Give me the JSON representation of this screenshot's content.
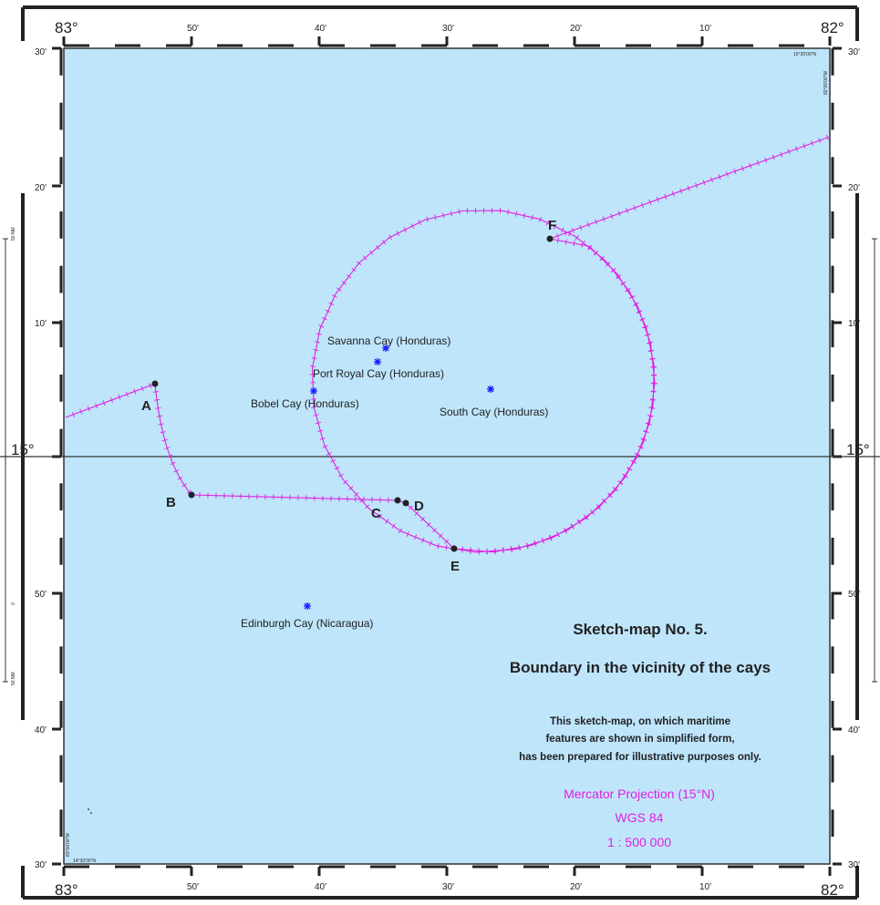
{
  "map": {
    "top_corner_left": "83°",
    "top_corner_right": "82°",
    "bottom_corner_left": "83°",
    "bottom_corner_right": "82°",
    "lon_ticks": [
      "50'",
      "40'",
      "30'",
      "20'",
      "10'"
    ],
    "lat_ticks_upper": [
      "30'",
      "20'",
      "10'"
    ],
    "lat_ticks_lower": [
      "50'",
      "40'",
      "30'"
    ],
    "lat_mid": "15°",
    "corner_tr_coord": "15°30'00\"N",
    "corner_tr_coord2": "82°00'00\"W",
    "corner_bl_coord": "14°30'00\"N",
    "corner_bl_coord2": "83°00'00\"W",
    "scale_left_top": "50 NM",
    "scale_left_mid": "0",
    "scale_left_bottom": "50 NM"
  },
  "points": [
    {
      "label": "A"
    },
    {
      "label": "B"
    },
    {
      "label": "C"
    },
    {
      "label": "D"
    },
    {
      "label": "E"
    },
    {
      "label": "F"
    }
  ],
  "cays": [
    {
      "name": "Savanna Cay (Honduras)"
    },
    {
      "name": "Port Royal Cay (Honduras)"
    },
    {
      "name": "Bobel Cay (Honduras)"
    },
    {
      "name": "South Cay (Honduras)"
    },
    {
      "name": "Edinburgh Cay (Nicaragua)"
    }
  ],
  "title": {
    "line1": "Sketch-map No. 5.",
    "line2": "Boundary in the vicinity of the cays"
  },
  "disclaimer": [
    "This sketch-map, on which maritime",
    "features are shown in simplified form,",
    "has been prepared for illustrative purposes only."
  ],
  "projection": {
    "line1": "Mercator Projection (15°N)",
    "line2": "WGS 84",
    "line3": "1 : 500 000"
  },
  "colors": {
    "sea": "#bfe5fb",
    "boundary": "#e020e0",
    "cay": "#1a1aff",
    "projection_text": "#e020e0"
  }
}
